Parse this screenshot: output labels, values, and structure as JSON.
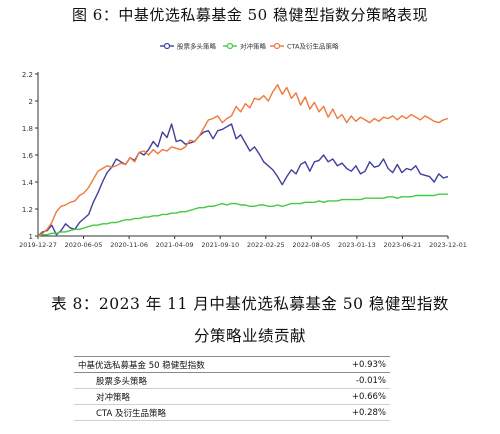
{
  "figure_caption": "图 6：中基优选私募基金 50 稳健型指数分策略表现",
  "chart_data": {
    "type": "line",
    "title": "",
    "xlabel": "",
    "ylabel": "",
    "ylim": [
      1,
      2.2
    ],
    "yticks": [
      "1",
      "1.2",
      "1.4",
      "1.6",
      "1.8",
      "2",
      "2.2"
    ],
    "xtick_labels": [
      "2019-12-27",
      "2020-06-05",
      "2020-11-06",
      "2021-04-09",
      "2021-09-10",
      "2022-02-25",
      "2022-08-05",
      "2023-01-13",
      "2023-06-21",
      "2023-12-01"
    ],
    "legend_position": "top",
    "grid": false,
    "series": [
      {
        "name": "股票多头策略",
        "color": "#3f3f9e",
        "values": [
          1.0,
          1.03,
          1.04,
          1.08,
          1.01,
          1.04,
          1.09,
          1.06,
          1.05,
          1.1,
          1.13,
          1.16,
          1.25,
          1.32,
          1.4,
          1.47,
          1.51,
          1.57,
          1.55,
          1.53,
          1.58,
          1.56,
          1.62,
          1.6,
          1.64,
          1.7,
          1.66,
          1.77,
          1.73,
          1.83,
          1.7,
          1.71,
          1.68,
          1.69,
          1.7,
          1.74,
          1.77,
          1.78,
          1.72,
          1.78,
          1.79,
          1.81,
          1.83,
          1.72,
          1.75,
          1.69,
          1.63,
          1.66,
          1.61,
          1.55,
          1.52,
          1.49,
          1.44,
          1.38,
          1.44,
          1.49,
          1.46,
          1.53,
          1.55,
          1.48,
          1.55,
          1.56,
          1.6,
          1.55,
          1.57,
          1.52,
          1.54,
          1.5,
          1.48,
          1.52,
          1.46,
          1.48,
          1.55,
          1.51,
          1.52,
          1.57,
          1.5,
          1.47,
          1.53,
          1.47,
          1.5,
          1.49,
          1.52,
          1.46,
          1.45,
          1.44,
          1.4,
          1.46,
          1.43,
          1.44
        ]
      },
      {
        "name": "对冲策略",
        "color": "#44c944",
        "values": [
          1.0,
          1.01,
          1.01,
          1.02,
          1.02,
          1.03,
          1.03,
          1.04,
          1.05,
          1.05,
          1.06,
          1.07,
          1.08,
          1.08,
          1.09,
          1.09,
          1.1,
          1.1,
          1.11,
          1.12,
          1.12,
          1.13,
          1.13,
          1.14,
          1.14,
          1.15,
          1.15,
          1.16,
          1.16,
          1.17,
          1.17,
          1.18,
          1.18,
          1.19,
          1.2,
          1.21,
          1.21,
          1.22,
          1.22,
          1.23,
          1.24,
          1.23,
          1.24,
          1.24,
          1.23,
          1.23,
          1.22,
          1.22,
          1.23,
          1.23,
          1.22,
          1.22,
          1.23,
          1.22,
          1.23,
          1.24,
          1.24,
          1.24,
          1.25,
          1.25,
          1.25,
          1.26,
          1.25,
          1.26,
          1.26,
          1.26,
          1.27,
          1.27,
          1.27,
          1.27,
          1.27,
          1.28,
          1.28,
          1.28,
          1.28,
          1.28,
          1.29,
          1.29,
          1.28,
          1.29,
          1.29,
          1.29,
          1.3,
          1.3,
          1.3,
          1.3,
          1.3,
          1.31,
          1.31,
          1.31
        ]
      },
      {
        "name": "CTA及衍生品策略",
        "color": "#f0783a",
        "values": [
          1.0,
          1.02,
          1.05,
          1.1,
          1.18,
          1.22,
          1.23,
          1.25,
          1.26,
          1.3,
          1.32,
          1.36,
          1.42,
          1.48,
          1.5,
          1.52,
          1.51,
          1.52,
          1.54,
          1.53,
          1.58,
          1.55,
          1.62,
          1.63,
          1.6,
          1.64,
          1.61,
          1.64,
          1.63,
          1.66,
          1.65,
          1.64,
          1.66,
          1.71,
          1.7,
          1.74,
          1.8,
          1.86,
          1.87,
          1.89,
          1.84,
          1.87,
          1.89,
          1.96,
          1.92,
          1.98,
          1.95,
          2.02,
          2.01,
          2.04,
          2.0,
          2.07,
          2.12,
          2.05,
          2.1,
          2.02,
          2.06,
          1.97,
          2.03,
          1.94,
          1.99,
          1.92,
          1.96,
          1.88,
          1.94,
          1.87,
          1.9,
          1.84,
          1.89,
          1.85,
          1.88,
          1.86,
          1.84,
          1.87,
          1.85,
          1.88,
          1.87,
          1.89,
          1.86,
          1.89,
          1.87,
          1.9,
          1.88,
          1.86,
          1.89,
          1.87,
          1.85,
          1.84,
          1.86,
          1.87
        ]
      }
    ]
  },
  "table_caption": {
    "line1": "表 8：2023 年 11 月中基优选私募基金 50 稳健型指数",
    "line2": "分策略业绩贡献"
  },
  "table": {
    "rows": [
      {
        "label": "中基优选私募基金 50 稳健型指数",
        "value": "+0.93%"
      },
      {
        "label": "股票多头策略",
        "value": "-0.01%"
      },
      {
        "label": "对冲策略",
        "value": "+0.66%"
      },
      {
        "label": "CTA 及衍生品策略",
        "value": "+0.28%"
      }
    ]
  }
}
